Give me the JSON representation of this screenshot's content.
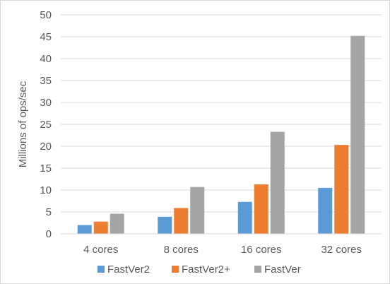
{
  "chart_data": {
    "type": "bar",
    "title": "",
    "xlabel": "",
    "ylabel": "Millions of ops/sec",
    "ylim": [
      0,
      50
    ],
    "yticks": [
      0,
      5,
      10,
      15,
      20,
      25,
      30,
      35,
      40,
      45,
      50
    ],
    "grid": true,
    "legend_position": "bottom",
    "categories": [
      "4 cores",
      "8 cores",
      "16 cores",
      "32 cores"
    ],
    "series": [
      {
        "name": "FastVer2",
        "color": "#5b9bd5",
        "values": [
          2.0,
          3.9,
          7.3,
          10.5
        ]
      },
      {
        "name": "FastVer2+",
        "color": "#ed7d31",
        "values": [
          2.8,
          5.9,
          11.3,
          20.3
        ]
      },
      {
        "name": "FastVer",
        "color": "#a5a5a5",
        "values": [
          4.6,
          10.7,
          23.3,
          45.2
        ]
      }
    ]
  }
}
